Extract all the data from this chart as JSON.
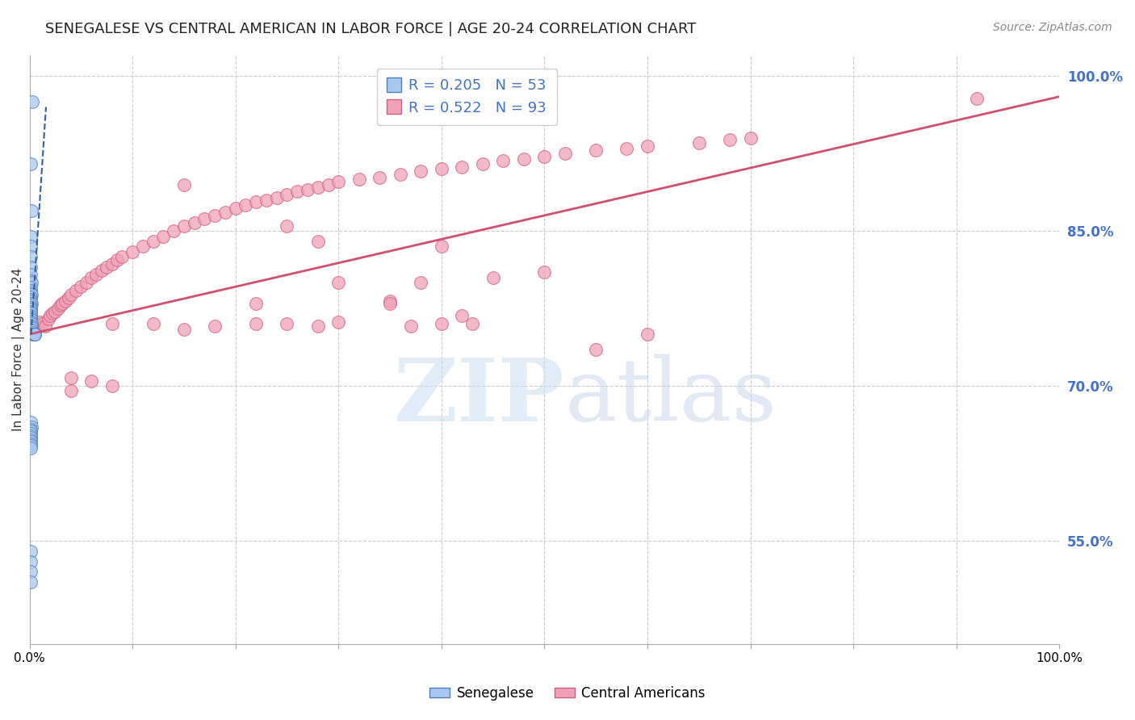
{
  "title": "SENEGALESE VS CENTRAL AMERICAN IN LABOR FORCE | AGE 20-24 CORRELATION CHART",
  "source": "Source: ZipAtlas.com",
  "ylabel": "In Labor Force | Age 20-24",
  "xlim": [
    0.0,
    1.0
  ],
  "ylim": [
    0.45,
    1.02
  ],
  "yticks": [
    0.55,
    0.7,
    0.85,
    1.0
  ],
  "ytick_labels": [
    "55.0%",
    "70.0%",
    "85.0%",
    "100.0%"
  ],
  "xticks": [
    0.0,
    0.1,
    0.2,
    0.3,
    0.4,
    0.5,
    0.6,
    0.7,
    0.8,
    0.9,
    1.0
  ],
  "xtick_labels": [
    "0.0%",
    "",
    "",
    "",
    "",
    "",
    "",
    "",
    "",
    "",
    "100.0%"
  ],
  "blue_R": 0.205,
  "blue_N": 53,
  "pink_R": 0.522,
  "pink_N": 93,
  "blue_color": "#a8c8f0",
  "pink_color": "#f0a0b8",
  "blue_edge_color": "#5080c0",
  "pink_edge_color": "#d06080",
  "blue_line_color": "#3060a0",
  "pink_line_color": "#d05070",
  "legend_blue_label": "Senegalese",
  "legend_pink_label": "Central Americans",
  "watermark_zip": "ZIP",
  "watermark_atlas": "atlas",
  "background_color": "#ffffff",
  "grid_color": "#cccccc",
  "right_axis_color": "#4472c4",
  "title_fontsize": 13,
  "axis_label_fontsize": 11,
  "tick_fontsize": 11,
  "blue_scatter_x": [
    0.003,
    0.001,
    0.002,
    0.001,
    0.001,
    0.001,
    0.001,
    0.001,
    0.001,
    0.002,
    0.001,
    0.001,
    0.001,
    0.002,
    0.001,
    0.001,
    0.001,
    0.002,
    0.001,
    0.001,
    0.001,
    0.001,
    0.001,
    0.001,
    0.001,
    0.001,
    0.001,
    0.002,
    0.002,
    0.002,
    0.002,
    0.003,
    0.003,
    0.004,
    0.004,
    0.005,
    0.005,
    0.001,
    0.002,
    0.001,
    0.001,
    0.001,
    0.001,
    0.001,
    0.001,
    0.001,
    0.001,
    0.001,
    0.001,
    0.001,
    0.001,
    0.001,
    0.001
  ],
  "blue_scatter_y": [
    0.975,
    0.915,
    0.87,
    0.845,
    0.835,
    0.825,
    0.815,
    0.808,
    0.802,
    0.8,
    0.795,
    0.792,
    0.79,
    0.788,
    0.786,
    0.784,
    0.782,
    0.78,
    0.778,
    0.776,
    0.774,
    0.772,
    0.77,
    0.768,
    0.766,
    0.764,
    0.762,
    0.76,
    0.758,
    0.756,
    0.754,
    0.752,
    0.75,
    0.75,
    0.75,
    0.75,
    0.75,
    0.665,
    0.66,
    0.658,
    0.656,
    0.654,
    0.652,
    0.65,
    0.648,
    0.646,
    0.644,
    0.642,
    0.64,
    0.54,
    0.53,
    0.52,
    0.51
  ],
  "pink_scatter_x": [
    0.005,
    0.008,
    0.01,
    0.012,
    0.015,
    0.018,
    0.02,
    0.022,
    0.025,
    0.028,
    0.03,
    0.032,
    0.035,
    0.038,
    0.04,
    0.045,
    0.05,
    0.055,
    0.06,
    0.065,
    0.07,
    0.075,
    0.08,
    0.085,
    0.09,
    0.1,
    0.11,
    0.12,
    0.13,
    0.14,
    0.15,
    0.16,
    0.17,
    0.18,
    0.19,
    0.2,
    0.21,
    0.22,
    0.23,
    0.24,
    0.25,
    0.26,
    0.27,
    0.28,
    0.29,
    0.3,
    0.32,
    0.34,
    0.36,
    0.38,
    0.4,
    0.42,
    0.44,
    0.46,
    0.48,
    0.5,
    0.52,
    0.55,
    0.58,
    0.6,
    0.65,
    0.68,
    0.7,
    0.15,
    0.08,
    0.06,
    0.04,
    0.04,
    0.08,
    0.12,
    0.15,
    0.18,
    0.22,
    0.22,
    0.25,
    0.28,
    0.3,
    0.3,
    0.35,
    0.38,
    0.4,
    0.42,
    0.45,
    0.5,
    0.55,
    0.6,
    0.4,
    0.35,
    0.28,
    0.25,
    0.92,
    0.43,
    0.37
  ],
  "pink_scatter_y": [
    0.75,
    0.758,
    0.762,
    0.76,
    0.758,
    0.765,
    0.768,
    0.77,
    0.772,
    0.775,
    0.778,
    0.78,
    0.782,
    0.785,
    0.788,
    0.792,
    0.796,
    0.8,
    0.805,
    0.808,
    0.812,
    0.815,
    0.818,
    0.822,
    0.825,
    0.83,
    0.835,
    0.84,
    0.845,
    0.85,
    0.855,
    0.858,
    0.862,
    0.865,
    0.868,
    0.872,
    0.875,
    0.878,
    0.88,
    0.882,
    0.885,
    0.888,
    0.89,
    0.892,
    0.895,
    0.898,
    0.9,
    0.902,
    0.905,
    0.908,
    0.91,
    0.912,
    0.915,
    0.918,
    0.92,
    0.922,
    0.925,
    0.928,
    0.93,
    0.932,
    0.935,
    0.938,
    0.94,
    0.895,
    0.7,
    0.705,
    0.708,
    0.695,
    0.76,
    0.76,
    0.755,
    0.758,
    0.76,
    0.78,
    0.76,
    0.758,
    0.762,
    0.8,
    0.782,
    0.8,
    0.835,
    0.768,
    0.805,
    0.81,
    0.735,
    0.75,
    0.76,
    0.78,
    0.84,
    0.855,
    0.978,
    0.76,
    0.758
  ],
  "pink_trend_x": [
    0.0,
    1.0
  ],
  "pink_trend_y": [
    0.75,
    0.98
  ],
  "blue_trend_x": [
    0.0015,
    0.016
  ],
  "blue_trend_y": [
    0.75,
    0.97
  ]
}
